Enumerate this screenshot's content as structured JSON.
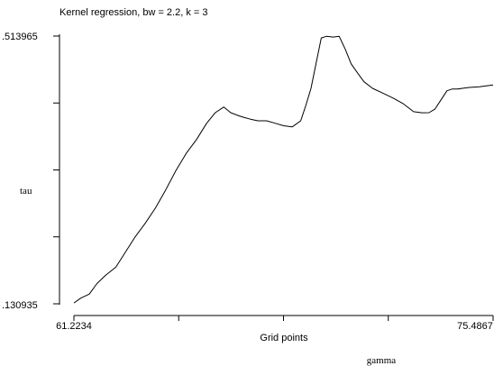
{
  "chart_data": {
    "type": "line",
    "title": "Kernel regression, bw = 2.2, k = 3",
    "xlabel": "Grid points",
    "ylabel": "tau",
    "footnote": "gamma",
    "xlim": [
      61.2234,
      75.4867
    ],
    "ylim": [
      0.130935,
      0.513965
    ],
    "x_tick_labels": [
      "61.2234",
      "75.4867"
    ],
    "y_tick_labels": [
      "0.513965",
      "0.130935"
    ],
    "y_tick_display": [
      ".513965",
      ".130935"
    ],
    "x_tick_values": [
      61.2234,
      64.7892,
      68.3551,
      71.9209,
      75.4867
    ],
    "y_tick_values": [
      0.130935,
      0.226693,
      0.32245,
      0.418208,
      0.513965
    ],
    "grid": false,
    "series": [
      {
        "name": "",
        "x": [
          61.2234,
          61.456,
          61.747,
          62.009,
          62.3,
          62.649,
          62.95,
          63.299,
          63.649,
          63.998,
          64.347,
          64.696,
          65.045,
          65.394,
          65.743,
          66.034,
          66.325,
          66.558,
          66.848,
          67.023,
          67.23,
          67.488,
          67.779,
          68.07,
          68.36,
          68.651,
          68.942,
          69.117,
          69.291,
          69.466,
          69.64,
          69.815,
          70.048,
          70.251,
          70.455,
          70.658,
          70.891,
          71.095,
          71.385,
          71.735,
          72.084,
          72.433,
          72.782,
          73.073,
          73.305,
          73.51,
          73.713,
          73.917,
          74.091,
          74.266,
          74.44,
          74.673,
          75.022,
          75.4867
        ],
        "y": [
          0.1321,
          0.1391,
          0.1449,
          0.16,
          0.1717,
          0.1833,
          0.2031,
          0.2263,
          0.2461,
          0.2682,
          0.2938,
          0.3217,
          0.3462,
          0.3659,
          0.3892,
          0.4043,
          0.4125,
          0.4043,
          0.3997,
          0.3974,
          0.3951,
          0.3927,
          0.3927,
          0.3892,
          0.3857,
          0.384,
          0.3927,
          0.4148,
          0.4392,
          0.4753,
          0.5113,
          0.5136,
          0.5125,
          0.5136,
          0.4951,
          0.4741,
          0.4602,
          0.4486,
          0.4392,
          0.4323,
          0.4253,
          0.4171,
          0.4058,
          0.4042,
          0.4043,
          0.4096,
          0.4227,
          0.4357,
          0.4381,
          0.4381,
          0.4392,
          0.4404,
          0.4415,
          0.4439
        ]
      }
    ]
  }
}
